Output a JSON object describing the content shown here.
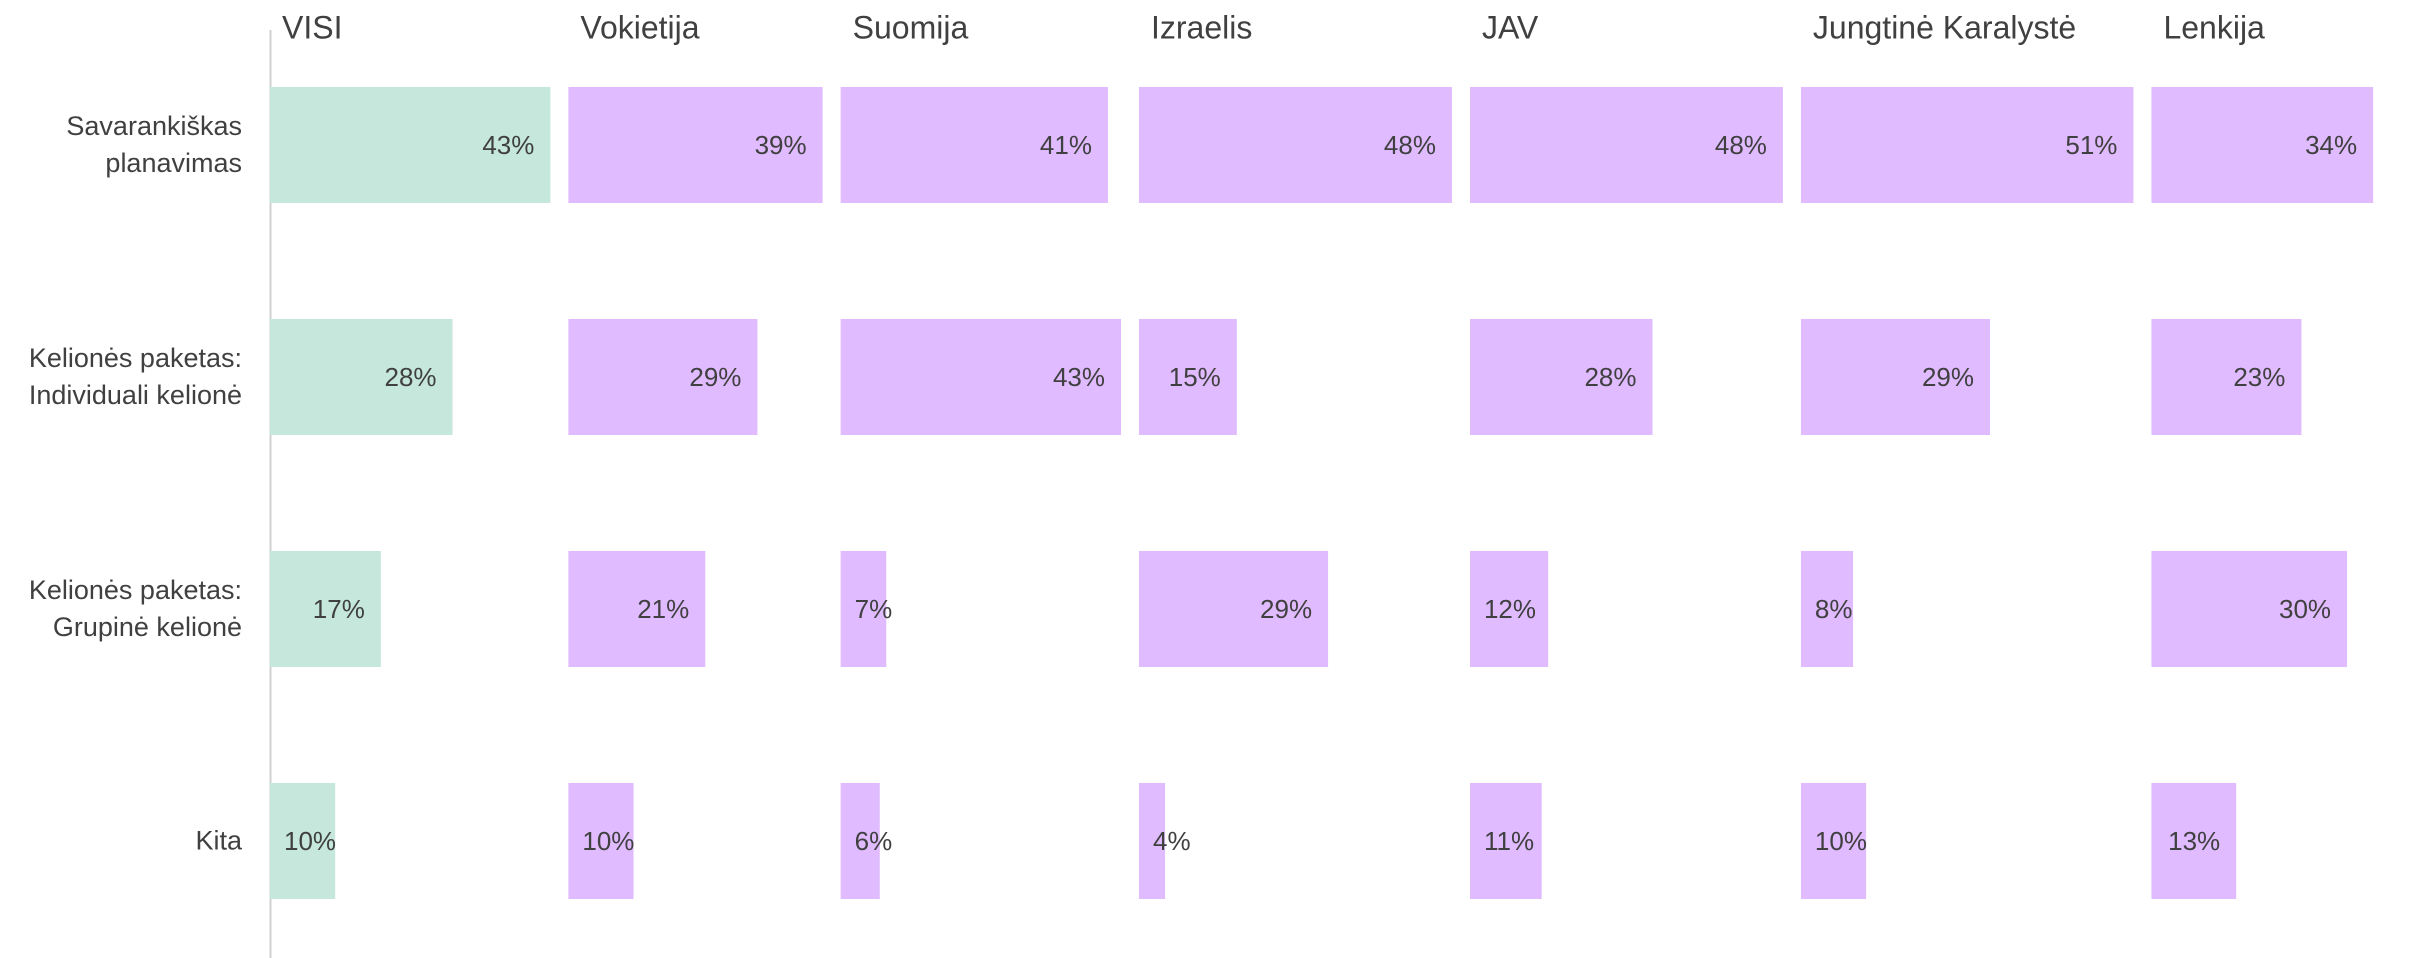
{
  "chart_data": {
    "type": "bar",
    "categories": [
      "Savarankiškas planavimas",
      "Kelionės paketas: Individuali kelionė",
      "Kelionės paketas: Grupinė kelionė",
      "Kita"
    ],
    "series": [
      {
        "name": "VISI",
        "color": "#c6e8dc",
        "values": [
          43,
          28,
          17,
          10
        ],
        "value_labels": [
          "43%",
          "28%",
          "17%",
          "10%"
        ]
      },
      {
        "name": "Vokietija",
        "color": "#e0bbff",
        "values": [
          39,
          29,
          21,
          10
        ],
        "value_labels": [
          "39%",
          "29%",
          "21%",
          "10%"
        ]
      },
      {
        "name": "Suomija",
        "color": "#e0bbff",
        "values": [
          41,
          43,
          7,
          6
        ],
        "value_labels": [
          "41%",
          "43%",
          "7%",
          "6%"
        ]
      },
      {
        "name": "Izraelis",
        "color": "#e0bbff",
        "values": [
          48,
          15,
          29,
          4
        ],
        "value_labels": [
          "48%",
          "15%",
          "29%",
          "4%"
        ]
      },
      {
        "name": "JAV",
        "color": "#e0bbff",
        "values": [
          48,
          28,
          12,
          11
        ],
        "value_labels": [
          "48%",
          "28%",
          "12%",
          "11%"
        ]
      },
      {
        "name": "Jungtinė Karalystė",
        "color": "#e0bbff",
        "values": [
          51,
          29,
          8,
          10
        ],
        "value_labels": [
          "51%",
          "29%",
          "8%",
          "10%"
        ]
      },
      {
        "name": "Lenkija",
        "color": "#e0bbff",
        "values": [
          34,
          23,
          30,
          13
        ],
        "value_labels": [
          "34%",
          "23%",
          "30%",
          "13%"
        ]
      }
    ]
  }
}
